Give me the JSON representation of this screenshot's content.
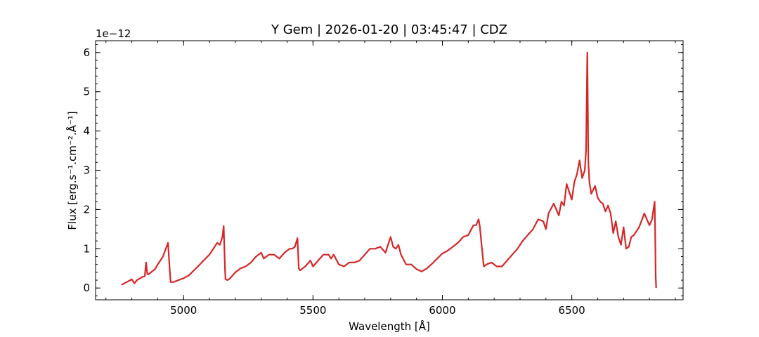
{
  "chart_data": {
    "type": "line",
    "title": "Y Gem | 2026-01-20 | 03:45:47 | CDZ",
    "xlabel": "Wavelength [Å]",
    "ylabel": "Flux [erg.s⁻¹.cm⁻².Å⁻¹]",
    "y_offset_label": "1e−12",
    "xlim": [
      4660,
      6930
    ],
    "ylim": [
      -0.3,
      6.3
    ],
    "xticks": [
      5000,
      5500,
      6000,
      6500
    ],
    "xtick_labels": [
      "5000",
      "5500",
      "6000",
      "6500"
    ],
    "yticks": [
      0,
      1,
      2,
      3,
      4,
      5,
      6
    ],
    "ytick_labels": [
      "0",
      "1",
      "2",
      "3",
      "4",
      "5",
      "6"
    ],
    "grid": false,
    "legend": "none",
    "series": [
      {
        "color": "#d62728",
        "x": [
          4760,
          4780,
          4800,
          4810,
          4820,
          4840,
          4850,
          4855,
          4860,
          4865,
          4870,
          4890,
          4900,
          4920,
          4940,
          4945,
          4950,
          4960,
          4980,
          5000,
          5020,
          5040,
          5060,
          5080,
          5100,
          5120,
          5130,
          5140,
          5150,
          5155,
          5160,
          5162,
          5170,
          5180,
          5200,
          5220,
          5240,
          5260,
          5280,
          5300,
          5310,
          5330,
          5350,
          5370,
          5390,
          5410,
          5420,
          5430,
          5440,
          5445,
          5450,
          5470,
          5490,
          5500,
          5520,
          5540,
          5560,
          5570,
          5580,
          5600,
          5620,
          5640,
          5660,
          5680,
          5700,
          5720,
          5740,
          5760,
          5780,
          5800,
          5810,
          5820,
          5830,
          5840,
          5860,
          5880,
          5900,
          5920,
          5940,
          5960,
          5980,
          6000,
          6020,
          6040,
          6060,
          6080,
          6100,
          6120,
          6130,
          6140,
          6145,
          6150,
          6160,
          6170,
          6190,
          6210,
          6230,
          6250,
          6270,
          6290,
          6310,
          6330,
          6350,
          6370,
          6390,
          6400,
          6410,
          6430,
          6450,
          6460,
          6470,
          6480,
          6500,
          6510,
          6520,
          6530,
          6540,
          6550,
          6555,
          6560,
          6562,
          6564,
          6568,
          6575,
          6590,
          6600,
          6610,
          6620,
          6630,
          6640,
          6650,
          6660,
          6670,
          6680,
          6690,
          6700,
          6710,
          6720,
          6730,
          6740,
          6760,
          6780,
          6800,
          6810,
          6820,
          6822,
          6824,
          6826
        ],
        "y": [
          0.08,
          0.15,
          0.22,
          0.12,
          0.2,
          0.28,
          0.3,
          0.65,
          0.35,
          0.35,
          0.38,
          0.48,
          0.6,
          0.8,
          1.15,
          0.6,
          0.15,
          0.15,
          0.2,
          0.25,
          0.32,
          0.45,
          0.58,
          0.72,
          0.85,
          1.05,
          1.15,
          1.1,
          1.3,
          1.58,
          0.5,
          0.22,
          0.2,
          0.25,
          0.4,
          0.5,
          0.55,
          0.65,
          0.8,
          0.9,
          0.75,
          0.85,
          0.85,
          0.75,
          0.9,
          1.0,
          1.0,
          1.05,
          1.27,
          0.5,
          0.45,
          0.55,
          0.7,
          0.55,
          0.7,
          0.85,
          0.85,
          0.75,
          0.85,
          0.6,
          0.55,
          0.65,
          0.65,
          0.7,
          0.85,
          1.0,
          1.0,
          1.05,
          0.9,
          1.3,
          1.05,
          1.0,
          1.1,
          0.85,
          0.6,
          0.6,
          0.48,
          0.42,
          0.5,
          0.62,
          0.75,
          0.88,
          0.95,
          1.05,
          1.15,
          1.3,
          1.35,
          1.6,
          1.6,
          1.75,
          1.55,
          1.2,
          0.55,
          0.6,
          0.65,
          0.55,
          0.55,
          0.7,
          0.85,
          1.0,
          1.2,
          1.35,
          1.5,
          1.75,
          1.7,
          1.5,
          1.9,
          2.15,
          1.85,
          2.2,
          2.1,
          2.65,
          2.25,
          2.7,
          2.9,
          3.25,
          2.8,
          3.0,
          3.5,
          6.0,
          4.5,
          3.2,
          2.7,
          2.4,
          2.6,
          2.3,
          2.2,
          2.15,
          1.95,
          2.1,
          1.9,
          1.4,
          1.7,
          1.3,
          1.1,
          1.55,
          1.0,
          1.05,
          1.3,
          1.35,
          1.55,
          1.9,
          1.6,
          1.75,
          2.2,
          1.5,
          0.3,
          0.0
        ]
      }
    ]
  }
}
